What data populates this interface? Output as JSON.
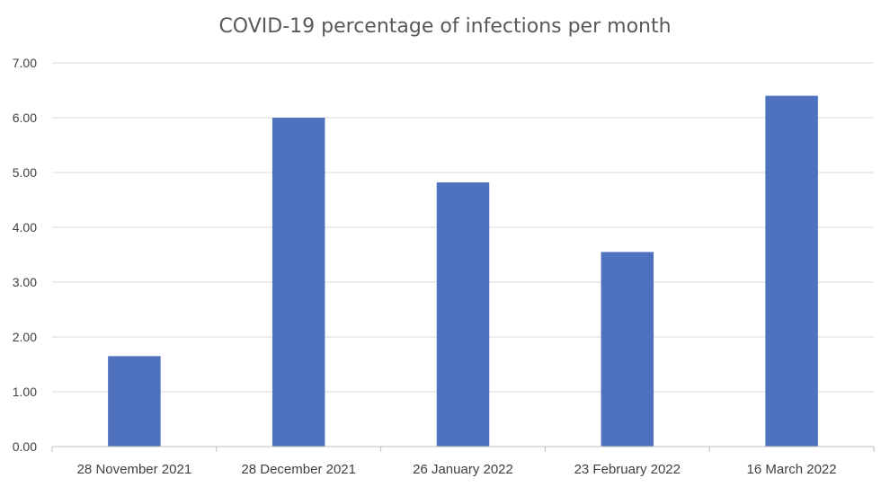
{
  "chart_data": {
    "type": "bar",
    "title": "COVID-19 percentage of infections per month",
    "xlabel": "",
    "ylabel": "",
    "categories": [
      "28 November 2021",
      "28 December 2021",
      "26 January 2022",
      "23 February 2022",
      "16 March 2022"
    ],
    "values": [
      1.65,
      6.0,
      4.82,
      3.55,
      6.4
    ],
    "ylim": [
      0,
      7
    ],
    "yticks": [
      "0.00",
      "1.00",
      "2.00",
      "3.00",
      "4.00",
      "5.00",
      "6.00",
      "7.00"
    ],
    "grid": true,
    "legend": "none",
    "bar_color": "#4e72be"
  }
}
